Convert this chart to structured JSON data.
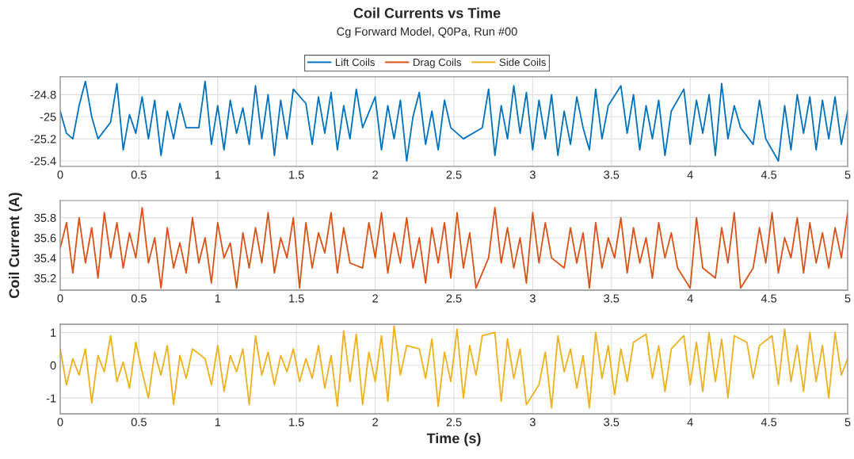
{
  "chart_data": [
    {
      "type": "line",
      "title": "Coil Currents vs Time",
      "subtitle": "Cg Forward Model, Q0Pa, Run #00",
      "legend": "top",
      "grid": true,
      "line_style": "solid",
      "xlim": [
        0,
        5
      ],
      "xticks": [
        0,
        0.5,
        1,
        1.5,
        2,
        2.5,
        3,
        3.5,
        4,
        4.5,
        5
      ],
      "ylim": [
        -25.45,
        -24.64
      ],
      "yticks": [
        -25.4,
        -25.2,
        -25,
        -24.8
      ],
      "x": [
        0,
        0.04,
        0.08,
        0.12,
        0.16,
        0.2,
        0.24,
        0.28,
        0.32,
        0.36,
        0.4,
        0.44,
        0.48,
        0.52,
        0.56,
        0.6,
        0.64,
        0.68,
        0.72,
        0.76,
        0.8,
        0.84,
        0.88,
        0.92,
        0.96,
        1.0,
        1.04,
        1.08,
        1.12,
        1.16,
        1.2,
        1.24,
        1.28,
        1.32,
        1.36,
        1.4,
        1.44,
        1.48,
        1.52,
        1.56,
        1.6,
        1.64,
        1.68,
        1.72,
        1.76,
        1.8,
        1.84,
        1.88,
        1.92,
        1.96,
        2.0,
        2.04,
        2.08,
        2.12,
        2.16,
        2.2,
        2.24,
        2.28,
        2.32,
        2.36,
        2.4,
        2.44,
        2.48,
        2.52,
        2.56,
        2.6,
        2.64,
        2.68,
        2.72,
        2.76,
        2.8,
        2.84,
        2.88,
        2.92,
        2.96,
        3.0,
        3.04,
        3.08,
        3.12,
        3.16,
        3.2,
        3.24,
        3.28,
        3.32,
        3.36,
        3.4,
        3.44,
        3.48,
        3.52,
        3.56,
        3.6,
        3.64,
        3.68,
        3.72,
        3.76,
        3.8,
        3.84,
        3.88,
        3.92,
        3.96,
        4.0,
        4.04,
        4.08,
        4.12,
        4.16,
        4.2,
        4.24,
        4.28,
        4.32,
        4.36,
        4.4,
        4.44,
        4.48,
        4.52,
        4.56,
        4.6,
        4.64,
        4.68,
        4.72,
        4.76,
        4.8,
        4.84,
        4.88,
        4.92,
        4.96,
        5.0
      ],
      "series": [
        {
          "name": "Lift Coils",
          "color": "#0072bd",
          "values": [
            -24.95,
            -25.15,
            -25.2,
            -24.9,
            -24.68,
            -25.0,
            -25.2,
            null,
            -25.05,
            -24.7,
            -25.3,
            -24.98,
            -25.15,
            -24.82,
            -25.2,
            -24.85,
            -25.35,
            -24.95,
            -25.2,
            -24.88,
            -25.1,
            null,
            -25.1,
            -24.68,
            -25.25,
            -24.9,
            -25.3,
            -24.85,
            -25.15,
            -24.92,
            -25.25,
            -24.72,
            -25.2,
            -24.8,
            -25.35,
            -24.85,
            -25.2,
            -24.75,
            null,
            -24.88,
            -25.25,
            -24.82,
            -25.15,
            -24.78,
            -25.3,
            -24.9,
            -25.2,
            -24.75,
            -25.1,
            null,
            -24.82,
            -25.3,
            -24.9,
            -25.2,
            -24.85,
            -25.4,
            -25.0,
            -24.78,
            -25.25,
            -24.95,
            -25.3,
            -24.85,
            -25.1,
            null,
            -25.2,
            null,
            null,
            -25.1,
            -24.75,
            -25.35,
            -24.9,
            -25.2,
            -24.72,
            -25.15,
            -24.78,
            -25.3,
            -24.85,
            -25.2,
            -24.8,
            -25.35,
            -24.95,
            -25.25,
            -24.82,
            -25.1,
            -25.3,
            -24.75,
            -25.2,
            -24.9,
            null,
            -24.72,
            -25.15,
            -24.8,
            -25.3,
            -24.9,
            -25.2,
            -24.85,
            -25.35,
            -24.95,
            null,
            -24.75,
            -25.25,
            -24.85,
            -25.15,
            -24.8,
            -25.35,
            -24.7,
            -25.2,
            -24.9,
            -25.1,
            null,
            -25.25,
            -24.85,
            -25.2,
            null,
            -25.4,
            -24.9,
            -25.3,
            -24.8,
            -25.15,
            -24.82,
            -25.3,
            -24.85,
            -25.2,
            -24.82,
            -25.25,
            -24.95
          ]
        }
      ]
    },
    {
      "type": "line",
      "ylabel": "Coil Current (A)",
      "legend": "top",
      "grid": true,
      "line_style": "solid",
      "xlim": [
        0,
        5
      ],
      "xticks": [
        0,
        0.5,
        1,
        1.5,
        2,
        2.5,
        3,
        3.5,
        4,
        4.5,
        5
      ],
      "ylim": [
        35.08,
        35.97
      ],
      "yticks": [
        35.2,
        35.4,
        35.6,
        35.8
      ],
      "x": [
        0,
        0.04,
        0.08,
        0.12,
        0.16,
        0.2,
        0.24,
        0.28,
        0.32,
        0.36,
        0.4,
        0.44,
        0.48,
        0.52,
        0.56,
        0.6,
        0.64,
        0.68,
        0.72,
        0.76,
        0.8,
        0.84,
        0.88,
        0.92,
        0.96,
        1.0,
        1.04,
        1.08,
        1.12,
        1.16,
        1.2,
        1.24,
        1.28,
        1.32,
        1.36,
        1.4,
        1.44,
        1.48,
        1.52,
        1.56,
        1.6,
        1.64,
        1.68,
        1.72,
        1.76,
        1.8,
        1.84,
        1.88,
        1.92,
        1.96,
        2.0,
        2.04,
        2.08,
        2.12,
        2.16,
        2.2,
        2.24,
        2.28,
        2.32,
        2.36,
        2.4,
        2.44,
        2.48,
        2.52,
        2.56,
        2.6,
        2.64,
        2.68,
        2.72,
        2.76,
        2.8,
        2.84,
        2.88,
        2.92,
        2.96,
        3.0,
        3.04,
        3.08,
        3.12,
        3.16,
        3.2,
        3.24,
        3.28,
        3.32,
        3.36,
        3.4,
        3.44,
        3.48,
        3.52,
        3.56,
        3.6,
        3.64,
        3.68,
        3.72,
        3.76,
        3.8,
        3.84,
        3.88,
        3.92,
        3.96,
        4.0,
        4.04,
        4.08,
        4.12,
        4.16,
        4.2,
        4.24,
        4.28,
        4.32,
        4.36,
        4.4,
        4.44,
        4.48,
        4.52,
        4.56,
        4.6,
        4.64,
        4.68,
        4.72,
        4.76,
        4.8,
        4.84,
        4.88,
        4.92,
        4.96,
        5.0
      ],
      "series": [
        {
          "name": "Drag Coils",
          "color": "#d95319",
          "values": [
            35.5,
            35.75,
            35.25,
            35.8,
            35.35,
            35.7,
            35.2,
            35.85,
            35.4,
            35.75,
            35.3,
            35.65,
            35.4,
            35.9,
            35.35,
            35.6,
            35.1,
            35.7,
            35.3,
            35.55,
            35.25,
            35.8,
            35.35,
            35.6,
            35.15,
            35.75,
            35.4,
            35.55,
            35.1,
            35.65,
            35.3,
            35.7,
            35.35,
            35.85,
            35.25,
            35.6,
            35.4,
            35.8,
            35.1,
            35.75,
            35.3,
            35.65,
            35.45,
            35.85,
            35.25,
            35.7,
            35.35,
            null,
            35.3,
            35.75,
            35.4,
            35.85,
            35.25,
            35.65,
            35.35,
            35.8,
            35.3,
            35.6,
            35.15,
            35.7,
            35.35,
            35.75,
            35.2,
            35.85,
            35.3,
            35.65,
            35.1,
            null,
            35.4,
            35.9,
            35.35,
            35.7,
            35.3,
            35.6,
            35.15,
            35.85,
            35.35,
            35.75,
            35.4,
            null,
            35.3,
            35.7,
            35.35,
            35.65,
            35.1,
            35.75,
            35.3,
            35.6,
            35.4,
            35.8,
            35.25,
            35.7,
            35.35,
            35.6,
            35.2,
            35.75,
            35.4,
            35.65,
            35.3,
            null,
            35.1,
            35.8,
            35.3,
            null,
            35.2,
            35.7,
            35.35,
            35.85,
            35.1,
            null,
            35.3,
            35.7,
            35.35,
            35.85,
            35.25,
            35.6,
            35.4,
            35.8,
            35.25,
            35.75,
            35.35,
            35.65,
            35.3,
            35.7,
            35.4,
            35.85
          ]
        }
      ]
    },
    {
      "type": "line",
      "xlabel": "Time (s)",
      "legend": "top",
      "grid": true,
      "line_style": "solid",
      "xlim": [
        0,
        5
      ],
      "xticks": [
        0,
        0.5,
        1,
        1.5,
        2,
        2.5,
        3,
        3.5,
        4,
        4.5,
        5
      ],
      "ylim": [
        -1.48,
        1.25
      ],
      "yticks": [
        -1,
        0,
        1
      ],
      "x": [
        0,
        0.04,
        0.08,
        0.12,
        0.16,
        0.2,
        0.24,
        0.28,
        0.32,
        0.36,
        0.4,
        0.44,
        0.48,
        0.52,
        0.56,
        0.6,
        0.64,
        0.68,
        0.72,
        0.76,
        0.8,
        0.84,
        0.88,
        0.92,
        0.96,
        1.0,
        1.04,
        1.08,
        1.12,
        1.16,
        1.2,
        1.24,
        1.28,
        1.32,
        1.36,
        1.4,
        1.44,
        1.48,
        1.52,
        1.56,
        1.6,
        1.64,
        1.68,
        1.72,
        1.76,
        1.8,
        1.84,
        1.88,
        1.92,
        1.96,
        2.0,
        2.04,
        2.08,
        2.12,
        2.16,
        2.2,
        2.24,
        2.28,
        2.32,
        2.36,
        2.4,
        2.44,
        2.48,
        2.52,
        2.56,
        2.6,
        2.64,
        2.68,
        2.72,
        2.76,
        2.8,
        2.84,
        2.88,
        2.92,
        2.96,
        3.0,
        3.04,
        3.08,
        3.12,
        3.16,
        3.2,
        3.24,
        3.28,
        3.32,
        3.36,
        3.4,
        3.44,
        3.48,
        3.52,
        3.56,
        3.6,
        3.64,
        3.68,
        3.72,
        3.76,
        3.8,
        3.84,
        3.88,
        3.92,
        3.96,
        4.0,
        4.04,
        4.08,
        4.12,
        4.16,
        4.2,
        4.24,
        4.28,
        4.32,
        4.36,
        4.4,
        4.44,
        4.48,
        4.52,
        4.56,
        4.6,
        4.64,
        4.68,
        4.72,
        4.76,
        4.8,
        4.84,
        4.88,
        4.92,
        4.96,
        5.0
      ],
      "series": [
        {
          "name": "Side Coils",
          "color": "#edb120",
          "values": [
            0.5,
            -0.6,
            0.2,
            -0.3,
            0.5,
            -1.15,
            0.3,
            -0.2,
            0.9,
            -0.5,
            0.1,
            -0.7,
            0.7,
            -0.2,
            -1.0,
            0.4,
            -0.3,
            0.6,
            -1.2,
            0.3,
            -0.4,
            0.5,
            null,
            0.2,
            -0.6,
            0.6,
            -0.8,
            0.3,
            -0.2,
            0.5,
            -1.2,
            0.9,
            -0.3,
            0.4,
            -0.6,
            0.3,
            -0.2,
            0.5,
            -0.5,
            0.2,
            -0.4,
            0.6,
            -0.7,
            0.3,
            -1.25,
            1.05,
            -0.5,
            0.95,
            -1.2,
            0.4,
            -0.5,
            0.9,
            -1.1,
            1.2,
            -0.3,
            0.6,
            null,
            0.5,
            -0.4,
            0.8,
            -1.25,
            0.4,
            -0.5,
            1.1,
            -1.0,
            0.6,
            -0.3,
            0.9,
            null,
            1.0,
            -1.1,
            0.8,
            -0.4,
            0.5,
            -1.2,
            null,
            -0.6,
            0.4,
            -1.3,
            0.9,
            -0.2,
            0.5,
            -0.7,
            0.3,
            -1.3,
            1.0,
            -0.4,
            0.6,
            -0.9,
            0.5,
            -0.5,
            0.7,
            null,
            0.95,
            -0.4,
            0.6,
            -0.8,
            0.5,
            null,
            0.9,
            -0.6,
            0.7,
            -0.8,
            1.0,
            -0.5,
            0.8,
            -1.0,
            0.9,
            null,
            0.7,
            -0.4,
            0.6,
            null,
            0.9,
            -0.6,
            1.1,
            -0.5,
            0.6,
            -0.8,
            1.0,
            -0.5,
            0.6,
            -1.0,
            1.0,
            -0.3,
            0.2
          ]
        }
      ]
    }
  ]
}
